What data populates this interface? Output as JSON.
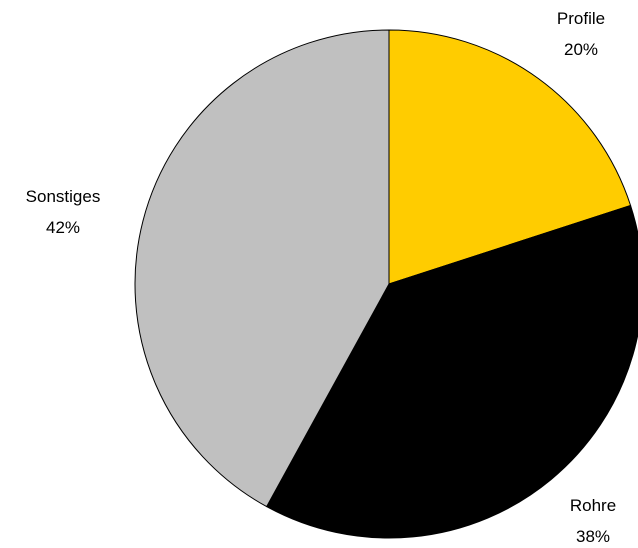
{
  "chart_data": {
    "type": "pie",
    "title": "",
    "slices": [
      {
        "label": "Profile",
        "value": 20,
        "value_label": "20%",
        "color": "#FFCC00"
      },
      {
        "label": "Rohre",
        "value": 38,
        "value_label": "38%",
        "color": "#000000"
      },
      {
        "label": "Sonstiges",
        "value": 42,
        "value_label": "42%",
        "color": "#C0C0C0"
      }
    ],
    "start_angle": "12 o'clock",
    "direction": "clockwise",
    "legend": "none"
  }
}
